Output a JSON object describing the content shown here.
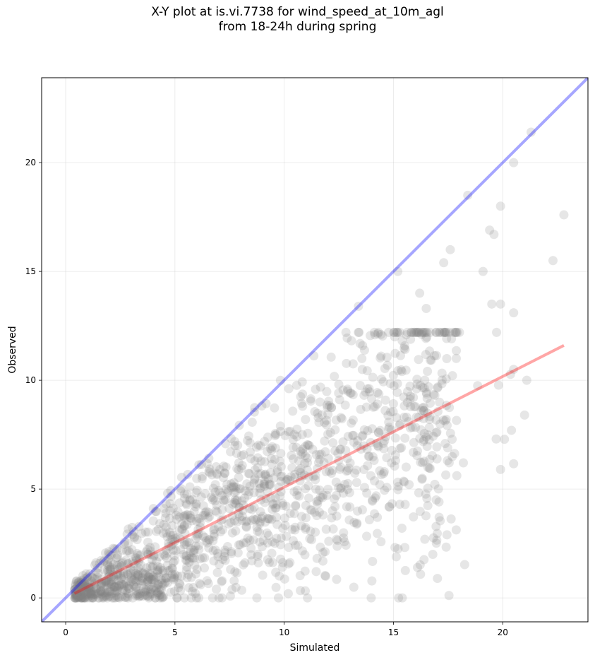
{
  "chart_data": {
    "type": "scatter",
    "title_lines": [
      "X-Y plot at is.vi.7738 for wind_speed_at_10m_agl",
      "from 18-24h during spring"
    ],
    "xlabel": "Simulated",
    "ylabel": "Observed",
    "xlim": [
      -1.1,
      23.9
    ],
    "ylim": [
      -1.1,
      23.9
    ],
    "xticks": [
      0,
      5,
      10,
      15,
      20
    ],
    "yticks": [
      0,
      5,
      10,
      15,
      20
    ],
    "grid": true,
    "point_color": "#808080",
    "one_to_one_line": {
      "x": [
        -1.1,
        23.9
      ],
      "y": [
        -1.1,
        23.9
      ],
      "color": "#0000ff"
    },
    "regression_line": {
      "x": [
        0.4,
        22.8
      ],
      "y": [
        0.2,
        11.6
      ],
      "color": "#ff0000"
    },
    "highlighted_points": {
      "x": [
        21.3,
        20.5,
        22.8,
        22.3,
        18.4,
        19.9,
        17.6,
        19.4,
        19.6,
        19.1,
        17.3,
        16.5,
        16.2,
        15.2,
        19.5,
        20.5,
        19.9,
        21.1,
        20.4,
        21.0,
        19.7,
        19.9,
        16.1,
        16.8,
        13.4
      ],
      "y": [
        21.4,
        20.0,
        17.6,
        15.5,
        18.5,
        18.0,
        16.0,
        16.9,
        16.7,
        15.0,
        15.4,
        13.3,
        14.0,
        15.0,
        13.5,
        13.1,
        13.5,
        10.0,
        7.7,
        8.4,
        7.3,
        5.9,
        1.4,
        2.0,
        13.4
      ]
    },
    "cloud_points": {
      "count": 1500,
      "x_range": [
        0.3,
        20.5
      ],
      "y_range": [
        0.0,
        12.2
      ]
    }
  }
}
